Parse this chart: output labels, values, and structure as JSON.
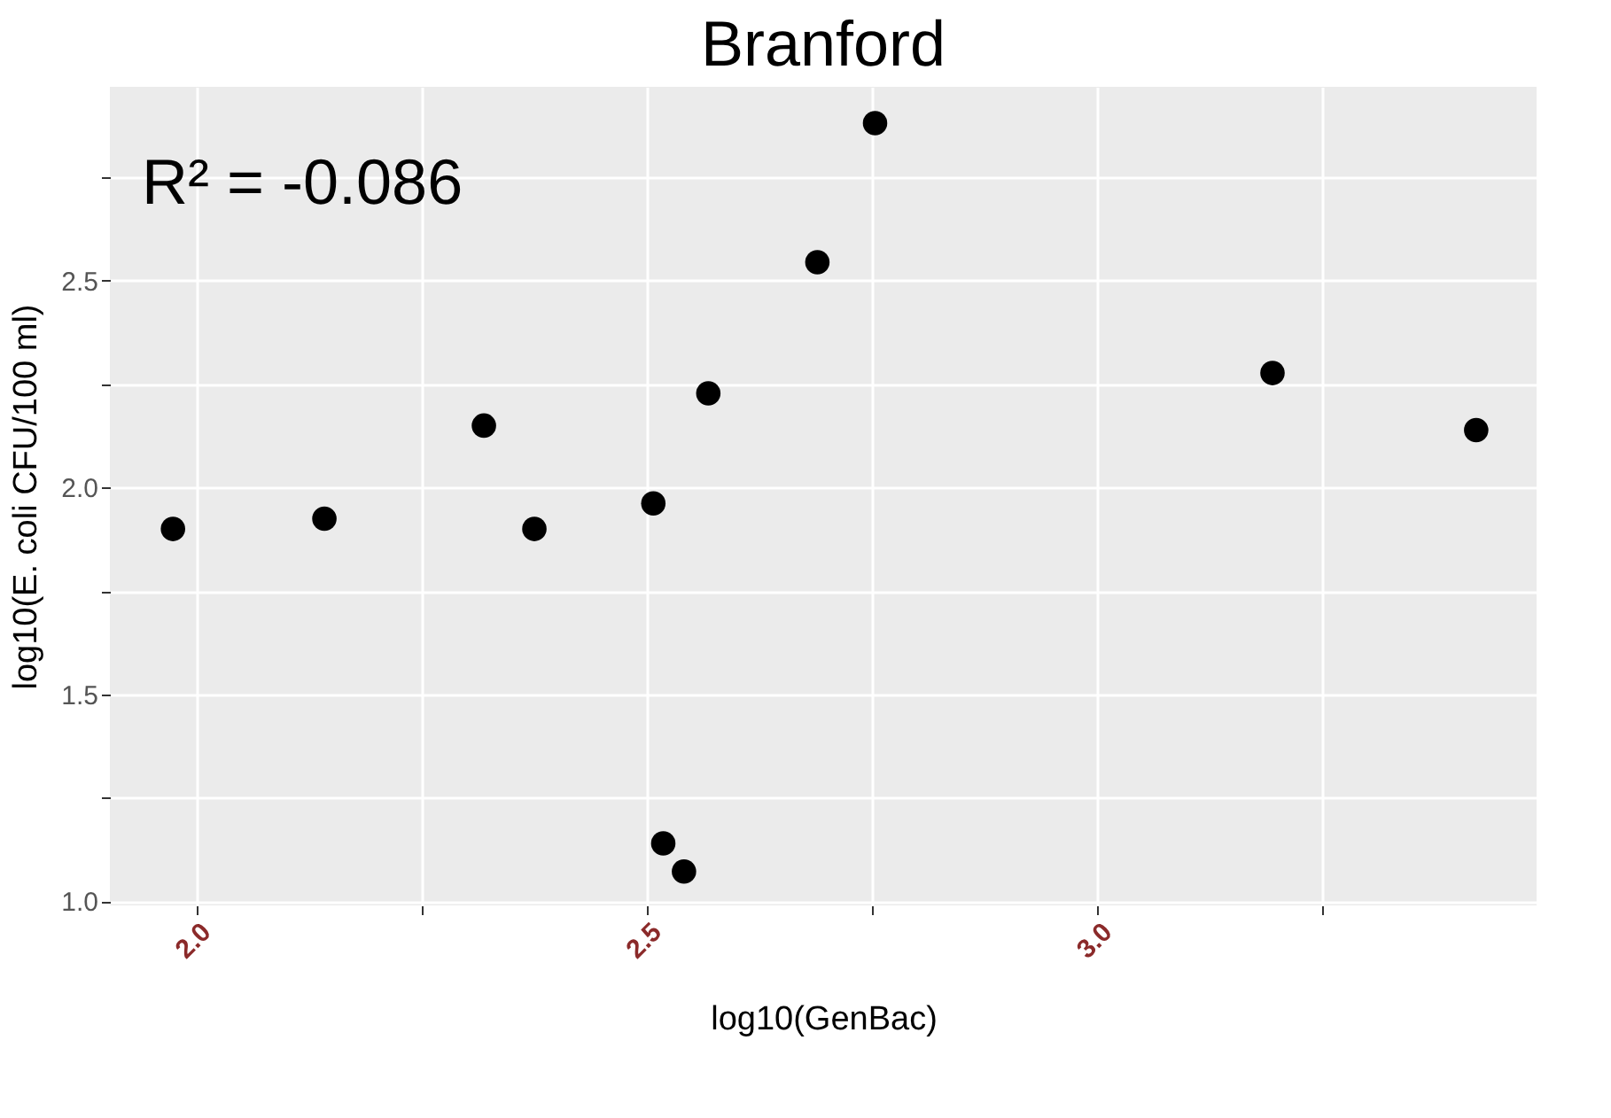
{
  "chart_data": {
    "type": "scatter",
    "title": "Branford",
    "xlabel": "log10(GenBac)",
    "ylabel": "log10(E. coli CFU/100 ml)",
    "annotations": [
      "R² = -0.086"
    ],
    "x": [
      1.974,
      2.142,
      2.319,
      2.375,
      2.507,
      2.568,
      2.518,
      2.541,
      2.689,
      2.753,
      3.194,
      3.42
    ],
    "series": [
      {
        "color": "#000000",
        "values": [
          1.9,
          1.925,
          2.15,
          1.9,
          1.962,
          2.228,
          1.14,
          1.072,
          2.545,
          2.881,
          2.277,
          2.139
        ]
      }
    ],
    "xlim": [
      1.904,
      3.487
    ],
    "ylim": [
      0.99,
      2.969
    ],
    "xticks": [
      {
        "value": 2,
        "label": "2.0"
      },
      {
        "value": 2.25,
        "label": null
      },
      2.5,
      {
        "value": 2.75,
        "label": null
      },
      {
        "value": 3,
        "label": "3.0"
      },
      {
        "value": 3.25,
        "label": null
      }
    ],
    "yticks": [
      {
        "value": 1,
        "label": "1.0"
      },
      {
        "value": 1.25,
        "label": null
      },
      1.5,
      {
        "value": 1.75,
        "label": null
      },
      {
        "value": 2,
        "label": "2.0"
      },
      {
        "value": 2.25,
        "label": null
      },
      2.5,
      {
        "value": 2.75,
        "label": null
      }
    ],
    "grid": true,
    "marker": "circle",
    "legend": false
  }
}
